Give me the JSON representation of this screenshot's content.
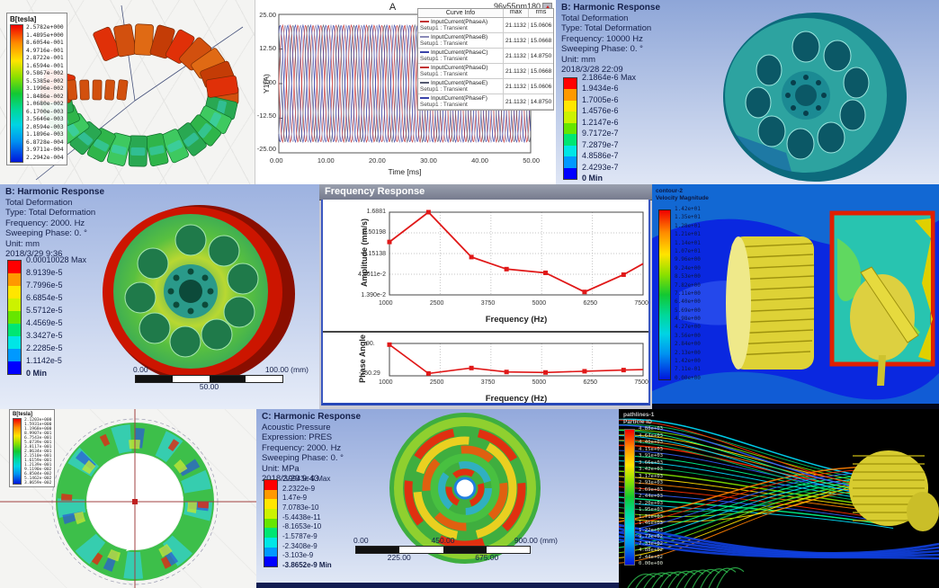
{
  "ansys_colors": [
    "#ff0000",
    "#ff9900",
    "#ffe600",
    "#ccf200",
    "#66e600",
    "#00e673",
    "#00e6e6",
    "#0099ff",
    "#0000ff"
  ],
  "panels": {
    "maxwell_torus": {
      "legend_title": "B[tesla]",
      "legend_values": [
        "2.5782e+000",
        "1.4895e+000",
        "8.6054e-001",
        "4.9716e-001",
        "2.8722e-001",
        "1.6594e-001",
        "9.5867e-002",
        "5.5385e-002",
        "3.1996e-002",
        "1.8486e-002",
        "1.0680e-002",
        "6.1700e-003",
        "3.5646e-003",
        "2.0594e-003",
        "1.1896e-003",
        "6.8728e-004",
        "3.9711e-004",
        "2.2942e-004"
      ]
    },
    "current_plot": {
      "title": "A",
      "corner_label": "96v55nm180",
      "ylabel": "Y1(A)",
      "xlabel": "Time [ms]",
      "yticks": [
        "25.00",
        "12.50",
        "0.00",
        "-12.50",
        "-25.00"
      ],
      "xticks": [
        "0.00",
        "10.00",
        "20.00",
        "30.00",
        "40.00",
        "50.00"
      ],
      "legend": {
        "headers": [
          "Curve Info",
          "max",
          "rms"
        ],
        "rows": [
          {
            "name": "InputCurrent(PhaseA)",
            "setup": "Setup1 : Transient",
            "max": "21.1132",
            "rms": "15.0606",
            "color": "#c23434"
          },
          {
            "name": "InputCurrent(PhaseB)",
            "setup": "Setup1 : Transient",
            "max": "21.1132",
            "rms": "15.0668",
            "color": "#8a8ab8"
          },
          {
            "name": "InputCurrent(PhaseC)",
            "setup": "Setup1 : Transient",
            "max": "21.1132",
            "rms": "14.8750",
            "color": "#3a44aa"
          },
          {
            "name": "InputCurrent(PhaseD)",
            "setup": "Setup1 : Transient",
            "max": "21.1132",
            "rms": "15.0668",
            "color": "#c23434"
          },
          {
            "name": "InputCurrent(PhaseE)",
            "setup": "Setup1 : Transient",
            "max": "21.1132",
            "rms": "15.0606",
            "color": "#555a70"
          },
          {
            "name": "InputCurrent(PhaseF)",
            "setup": "Setup1 : Transient",
            "max": "21.1132",
            "rms": "14.8750",
            "color": "#3a44aa"
          }
        ]
      }
    },
    "harmonic_10000": {
      "title": "B: Harmonic Response",
      "info_lines": [
        "Total Deformation",
        "Type: Total Deformation",
        "Frequency: 10000 Hz",
        "Sweeping Phase: 0. °",
        "Unit: mm",
        "2018/3/28 22:09"
      ],
      "colorbar_labels": [
        "2.1864e-6 Max",
        "1.9434e-6",
        "1.7005e-6",
        "1.4576e-6",
        "1.2147e-6",
        "9.7172e-7",
        "7.2879e-7",
        "4.8586e-7",
        "2.4293e-7",
        "0 Min"
      ]
    },
    "harmonic_2000": {
      "title": "B: Harmonic Response",
      "info_lines": [
        "Total Deformation",
        "Type: Total Deformation",
        "Frequency: 2000. Hz",
        "Sweeping Phase: 0. °",
        "Unit: mm",
        "2018/3/29 9:36"
      ],
      "colorbar_labels": [
        "0.00010028 Max",
        "8.9139e-5",
        "7.7996e-5",
        "6.6854e-5",
        "5.5712e-5",
        "4.4569e-5",
        "3.3427e-5",
        "2.2285e-5",
        "1.1142e-5",
        "0 Min"
      ],
      "scale": {
        "left": "0.00",
        "right": "100.00 (mm)",
        "mid": "50.00"
      }
    },
    "freq_response": {
      "window_title": "Frequency Response",
      "amplitude": {
        "ylabel": "Amplitude (mm/s)",
        "yticks": [
          "1.6881",
          "0.50198",
          "0.15138",
          "4.6011e-2",
          "1.390e-2"
        ],
        "xticks": [
          "1000",
          "2500",
          "3750",
          "5000",
          "6250",
          "7500"
        ],
        "xlabel": "Frequency (Hz)"
      },
      "phase": {
        "ylabel": "Phase Angle",
        "yticks": [
          "90.",
          "-150.29"
        ],
        "xticks": [
          "1000",
          "2500",
          "3750",
          "5000",
          "6250",
          "7500"
        ],
        "xlabel": "Frequency (Hz)"
      }
    },
    "cfd_velocity": {
      "legend_title_lines": [
        "contour-2",
        "Velocity Magnitude"
      ],
      "legend_values": [
        "1.42e+01",
        "1.35e+01",
        "1.28e+01",
        "1.21e+01",
        "1.14e+01",
        "1.07e+01",
        "9.96e+00",
        "9.24e+00",
        "8.53e+00",
        "7.82e+00",
        "7.11e+00",
        "6.40e+00",
        "5.69e+00",
        "4.98e+00",
        "4.27e+00",
        "3.56e+00",
        "2.84e+00",
        "2.13e+00",
        "1.42e+00",
        "7.11e-01",
        "0.00e+00"
      ]
    },
    "maxwell_rotor": {
      "legend_title": "B[tesla]",
      "legend_values": [
        "2.1203e+000",
        "1.5931e+000",
        "1.1968e+000",
        "8.9907e-001",
        "6.7543e-001",
        "5.0739e-001",
        "3.8117e-001",
        "2.8634e-001",
        "2.1510e-001",
        "1.6159e-001",
        "1.2139e-001",
        "9.1190e-002",
        "6.8504e-002",
        "5.1462e-002",
        "3.8659e-002"
      ]
    },
    "acoustic": {
      "title": "C: Harmonic Response",
      "info_lines": [
        "Acoustic Pressure",
        "Expression: PRES",
        "Frequency: 2000. Hz",
        "Sweeping Phase: 0. °",
        "Unit: MPa",
        "2018/3/29 9:43"
      ],
      "colorbar_labels": [
        "2.9943e-9 Max",
        "2.2322e-9",
        "1.47e-9",
        "7.0783e-10",
        "-5.4438e-11",
        "-8.1653e-10",
        "-1.5787e-9",
        "-2.3408e-9",
        "-3.103e-9",
        "-3.8652e-9 Min"
      ],
      "scale": {
        "top_labels": [
          "0.00",
          "450.00",
          "900.00 (mm)"
        ],
        "bottom_labels": [
          "225.00",
          "675.00"
        ]
      }
    },
    "pathlines": {
      "legend_title_lines": [
        "pathlines-1",
        "Particle ID"
      ],
      "legend_values": [
        "4.88e+03",
        "4.64e+03",
        "4.40e+03",
        "4.15e+03",
        "3.91e+03",
        "3.66e+03",
        "3.42e+03",
        "3.17e+03",
        "2.93e+03",
        "2.69e+03",
        "2.44e+03",
        "2.20e+03",
        "1.95e+03",
        "1.71e+03",
        "1.46e+03",
        "1.22e+03",
        "9.77e+02",
        "7.33e+02",
        "4.88e+02",
        "2.44e+02",
        "0.00e+00"
      ]
    }
  },
  "chart_data": [
    {
      "type": "line",
      "title": "A",
      "subtitle": "96v55nm180",
      "xlabel": "Time [ms]",
      "ylabel": "Y1(A)",
      "xlim": [
        0,
        50
      ],
      "ylim": [
        -25,
        25
      ],
      "description": "Six-phase sinusoidal input currents vs time, amplitude 21.1132 A, period ~3.03 ms",
      "period_ms": 3.0303,
      "series": [
        {
          "name": "InputCurrent(PhaseA)",
          "max": 21.1132,
          "rms": 15.0606,
          "color": "#c23434"
        },
        {
          "name": "InputCurrent(PhaseB)",
          "max": 21.1132,
          "rms": 15.0668,
          "color": "#8a8ab8"
        },
        {
          "name": "InputCurrent(PhaseC)",
          "max": 21.1132,
          "rms": 14.875,
          "color": "#3a44aa"
        },
        {
          "name": "InputCurrent(PhaseD)",
          "max": 21.1132,
          "rms": 15.0668,
          "color": "#c23434"
        },
        {
          "name": "InputCurrent(PhaseE)",
          "max": 21.1132,
          "rms": 15.0606,
          "color": "#555a70"
        },
        {
          "name": "InputCurrent(PhaseF)",
          "max": 21.1132,
          "rms": 14.875,
          "color": "#3a44aa"
        }
      ]
    },
    {
      "type": "line",
      "title": "Frequency Response - Amplitude",
      "xlabel": "Frequency (Hz)",
      "ylabel": "Amplitude (mm/s)",
      "yscale": "log",
      "ylim": [
        0.0139,
        1.6881
      ],
      "xlim": [
        1000,
        7500
      ],
      "x": [
        1000,
        2000,
        3100,
        4000,
        5000,
        6000,
        7000,
        7500
      ],
      "y": [
        0.3,
        1.6881,
        0.125,
        0.062,
        0.05,
        0.0165,
        0.045,
        0.085
      ],
      "color": "#e01818"
    },
    {
      "type": "line",
      "title": "Frequency Response - Phase",
      "xlabel": "Frequency (Hz)",
      "ylabel": "Phase Angle",
      "ylim": [
        -170,
        100
      ],
      "xlim": [
        1000,
        7500
      ],
      "x": [
        1000,
        2000,
        3100,
        4000,
        5000,
        6000,
        7000,
        7500
      ],
      "y": [
        90,
        -150.29,
        -105,
        -138,
        -142,
        -132,
        -122,
        -118
      ],
      "color": "#e01818"
    }
  ]
}
